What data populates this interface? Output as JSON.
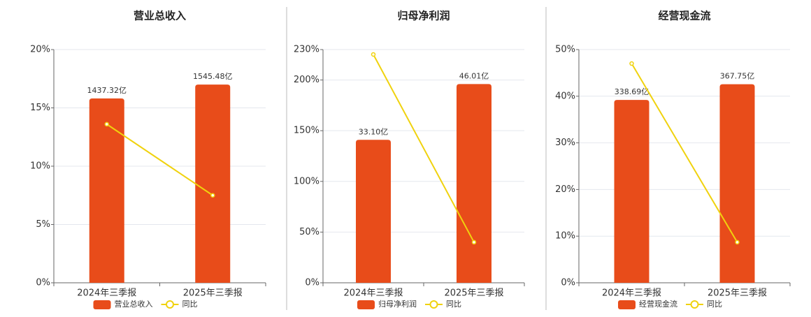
{
  "chart_data": [
    {
      "type": "combo",
      "title": "营业总收入",
      "categories": [
        "2024年三季报",
        "2025年三季报"
      ],
      "ylim": [
        0,
        20
      ],
      "yticks": [
        {
          "value": 0,
          "label": "0%"
        },
        {
          "value": 5,
          "label": "5%"
        },
        {
          "value": 10,
          "label": "10%"
        },
        {
          "value": 15,
          "label": "15%"
        },
        {
          "value": 20,
          "label": "20%"
        }
      ],
      "y2lim": [
        0,
        1818
      ],
      "grid": true,
      "series": [
        {
          "name": "营业总收入",
          "kind": "bar",
          "color": "#e84c1a",
          "axis": "y2",
          "values": [
            1437.32,
            1545.48
          ],
          "value_labels": [
            "1437.32亿",
            "1545.48亿"
          ]
        },
        {
          "name": "同比",
          "kind": "line",
          "color": "#f0d20e",
          "values": [
            13.6,
            7.5
          ]
        }
      ]
    },
    {
      "type": "combo",
      "title": "归母净利润",
      "categories": [
        "2024年三季报",
        "2025年三季报"
      ],
      "ylim": [
        0,
        230
      ],
      "yticks": [
        {
          "value": 0,
          "label": "0%"
        },
        {
          "value": 50,
          "label": "50%"
        },
        {
          "value": 100,
          "label": "100%"
        },
        {
          "value": 150,
          "label": "150%"
        },
        {
          "value": 200,
          "label": "200%"
        },
        {
          "value": 230,
          "label": "230%"
        }
      ],
      "y2lim": [
        0,
        54
      ],
      "grid": true,
      "series": [
        {
          "name": "归母净利润",
          "kind": "bar",
          "color": "#e84c1a",
          "axis": "y2",
          "values": [
            33.1,
            46.01
          ],
          "value_labels": [
            "33.10亿",
            "46.01亿"
          ]
        },
        {
          "name": "同比",
          "kind": "line",
          "color": "#f0d20e",
          "values": [
            225.2,
            40
          ]
        }
      ]
    },
    {
      "type": "combo",
      "title": "经营现金流",
      "categories": [
        "2024年三季报",
        "2025年三季报"
      ],
      "ylim": [
        0,
        50
      ],
      "yticks": [
        {
          "value": 0,
          "label": "0%"
        },
        {
          "value": 10,
          "label": "10%"
        },
        {
          "value": 20,
          "label": "20%"
        },
        {
          "value": 30,
          "label": "30%"
        },
        {
          "value": 40,
          "label": "40%"
        },
        {
          "value": 50,
          "label": "50%"
        }
      ],
      "y2lim": [
        0,
        432
      ],
      "grid": true,
      "series": [
        {
          "name": "经营现金流",
          "kind": "bar",
          "color": "#e84c1a",
          "axis": "y2",
          "values": [
            338.69,
            367.75
          ],
          "value_labels": [
            "338.69亿",
            "367.75亿"
          ]
        },
        {
          "name": "同比",
          "kind": "line",
          "color": "#f0d20e",
          "values": [
            47.0,
            8.7
          ]
        }
      ]
    }
  ]
}
